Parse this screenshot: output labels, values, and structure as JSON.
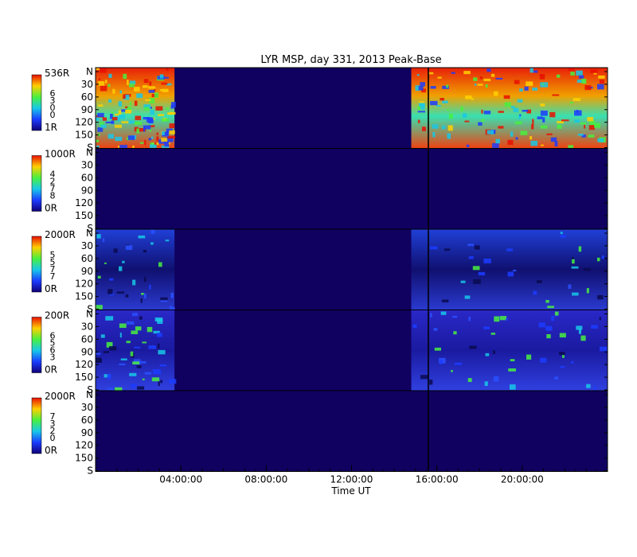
{
  "chart_data": {
    "type": "heatmap",
    "title": "LYR MSP, day 331, 2013 Peak-Base",
    "xlabel": "Time UT",
    "x_ticks": [
      "04:00:00",
      "08:00:00",
      "12:00:00",
      "16:00:00",
      "20:00:00"
    ],
    "x_range_hours": [
      0,
      24
    ],
    "x_tick_hours": [
      4,
      8,
      12,
      16,
      20
    ],
    "data_gap_hours": [
      3.7,
      14.8
    ],
    "cursor_hour": 15.6,
    "y_ticks": [
      "N",
      "30",
      "60",
      "90",
      "120",
      "150",
      "S"
    ],
    "panels": [
      {
        "max_label": "536R",
        "min_label": "1R",
        "code_digits": [
          "6",
          "3",
          "0",
          "0"
        ],
        "intensity_level": 0.72
      },
      {
        "max_label": "1000R",
        "min_label": "0R",
        "code_digits": [
          "4",
          "2",
          "7",
          "8"
        ],
        "intensity_level": 0.0
      },
      {
        "max_label": "2000R",
        "min_label": "0R",
        "code_digits": [
          "5",
          "5",
          "7",
          "7"
        ],
        "intensity_level": 0.18
      },
      {
        "max_label": "200R",
        "min_label": "0R",
        "code_digits": [
          "6",
          "5",
          "6",
          "3"
        ],
        "intensity_level": 0.28
      },
      {
        "max_label": "2000R",
        "min_label": "0R",
        "code_digits": [
          "7",
          "3",
          "2",
          "0"
        ],
        "intensity_level": 0.0
      }
    ]
  }
}
